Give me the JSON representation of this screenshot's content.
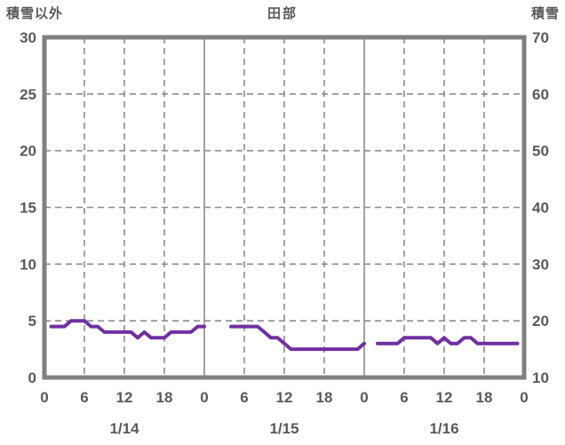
{
  "colors": {
    "background": "#FFFFFF",
    "frame": "#808080",
    "grid": "#8C8C8C",
    "text": "#595959",
    "series_purple": "#7030A0"
  },
  "chart_data": {
    "type": "line",
    "title": "田部",
    "left_axis": {
      "label": "積雪以外",
      "min": 0,
      "max": 30,
      "tick_step": 5,
      "ticks": [
        0,
        5,
        10,
        15,
        20,
        25,
        30
      ]
    },
    "right_axis": {
      "label": "積雪",
      "min": 10,
      "max": 70,
      "tick_step": 10,
      "ticks": [
        10,
        20,
        30,
        40,
        50,
        60,
        70
      ]
    },
    "x_axis": {
      "days": [
        "1/14",
        "1/15",
        "1/16"
      ],
      "hour_ticks": [
        0,
        6,
        12,
        18
      ],
      "end_tick_label": "0",
      "hours_total": 72
    },
    "grid": {
      "h_dashed_left_values": [
        5,
        10,
        15,
        20,
        25
      ],
      "v_dashed_hours": [
        6,
        12,
        18
      ],
      "day_boundaries_solid": true
    },
    "legend": "none",
    "series": [
      {
        "name": "積雪",
        "axis": "right",
        "color": "#7030A0",
        "segments": [
          {
            "day": "1/14",
            "day_index": 0,
            "start_hour": 1,
            "values": [
              19,
              19,
              19,
              20,
              20,
              20,
              19,
              19,
              18,
              18,
              18,
              18,
              18,
              17,
              18,
              17,
              17,
              17,
              18,
              18,
              18,
              18,
              19,
              19
            ]
          },
          {
            "day": "1/15",
            "day_index": 1,
            "start_hour": 4,
            "values": [
              19,
              19,
              19,
              19,
              19,
              18,
              17,
              17,
              16,
              15,
              15,
              15,
              15,
              15,
              15,
              15,
              15,
              15,
              15,
              15,
              16
            ]
          },
          {
            "day": "1/16",
            "day_index": 2,
            "start_hour": 2,
            "values": [
              16,
              16,
              16,
              16,
              17,
              17,
              17,
              17,
              17,
              16,
              17,
              16,
              16,
              17,
              17,
              16,
              16,
              16,
              16,
              16,
              16,
              16
            ]
          }
        ]
      }
    ]
  }
}
